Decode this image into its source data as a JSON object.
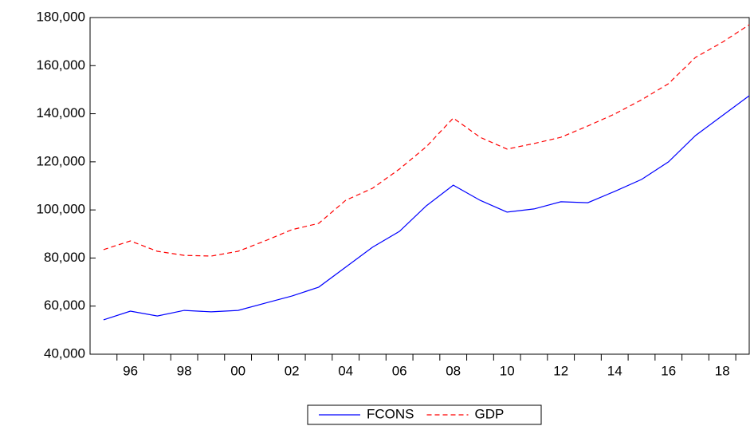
{
  "chart_data": {
    "type": "line",
    "categories": [
      null,
      "96",
      null,
      "98",
      null,
      "00",
      null,
      "02",
      null,
      "04",
      null,
      "06",
      null,
      "08",
      null,
      "10",
      null,
      "12",
      null,
      "14",
      null,
      "16",
      null,
      "18",
      null
    ],
    "series": [
      {
        "name": "FCONS",
        "color": "#0000ff",
        "dash": "solid",
        "values": [
          54300,
          57900,
          55900,
          58200,
          57600,
          58200,
          61200,
          64200,
          67900,
          76200,
          84500,
          91100,
          101700,
          110300,
          104000,
          99100,
          100400,
          103400,
          103000,
          107700,
          112700,
          120000,
          130900,
          139200,
          147500
        ]
      },
      {
        "name": "GDP",
        "color": "#ff0000",
        "dash": "dashed",
        "values": [
          83500,
          87100,
          82800,
          81100,
          80800,
          82800,
          87100,
          91800,
          94400,
          104000,
          109000,
          117000,
          126300,
          138200,
          130200,
          125300,
          127600,
          130200,
          134900,
          139900,
          145800,
          152500,
          163400,
          169700,
          177000
        ]
      }
    ],
    "ylim": [
      40000,
      180000
    ],
    "yticks": [
      {
        "value": 40000,
        "label": "40,000"
      },
      {
        "value": 60000,
        "label": "60,000"
      },
      {
        "value": 80000,
        "label": "80,000"
      },
      {
        "value": 100000,
        "label": "100,000"
      },
      {
        "value": 120000,
        "label": "120,000"
      },
      {
        "value": 140000,
        "label": "140,000"
      },
      {
        "value": 160000,
        "label": "160,000"
      },
      {
        "value": 180000,
        "label": "180,000"
      }
    ],
    "grid": false,
    "legend": "bottom"
  }
}
